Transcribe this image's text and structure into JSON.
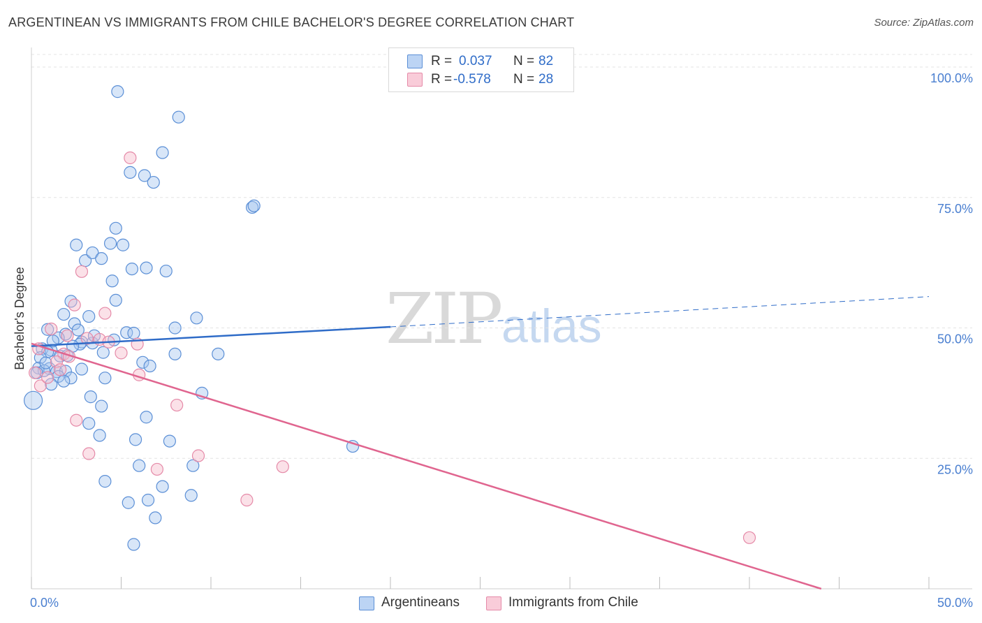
{
  "title": "ARGENTINEAN VS IMMIGRANTS FROM CHILE BACHELOR'S DEGREE CORRELATION CHART",
  "source": "Source: ZipAtlas.com",
  "watermark": {
    "zip": "ZIP",
    "atlas": "atlas"
  },
  "legend_top": {
    "rows": [
      {
        "r_label": "R =",
        "r_value": "0.037",
        "n_label": "N =",
        "n_value": "82"
      },
      {
        "r_label": "R =",
        "r_value": "-0.578",
        "n_label": "N =",
        "n_value": "28"
      }
    ]
  },
  "legend_bottom": {
    "a": "Argentineans",
    "b": "Immigrants from Chile"
  },
  "colors": {
    "blue_fill": "#a9c7f0",
    "blue_stroke": "#5b8fd6",
    "blue_line": "#2f6cc8",
    "pink_fill": "#f7bccd",
    "pink_stroke": "#e58aa8",
    "pink_line": "#e0658f"
  },
  "chart_data": {
    "type": "scatter",
    "title": "ARGENTINEAN VS IMMIGRANTS FROM CHILE BACHELOR'S DEGREE CORRELATION CHART",
    "ylabel": "Bachelor's Degree",
    "xlabel": "",
    "xlim": [
      0,
      50
    ],
    "ylim": [
      0,
      100
    ],
    "x_tick_labels": [
      "0.0%",
      "50.0%"
    ],
    "y_tick_labels": [
      "25.0%",
      "50.0%",
      "75.0%",
      "100.0%"
    ],
    "y_ticks": [
      25,
      50,
      75,
      100
    ],
    "grid": true,
    "legend": "top-center",
    "series": [
      {
        "name": "Argentineans",
        "R": 0.037,
        "N": 82,
        "trend": {
          "x": [
            0,
            20,
            50
          ],
          "y": [
            46.5,
            50.2,
            56.0
          ],
          "solid_until": 20
        },
        "points": [
          [
            4.8,
            95.3
          ],
          [
            8.2,
            90.4
          ],
          [
            7.3,
            83.6
          ],
          [
            5.5,
            79.8
          ],
          [
            6.3,
            79.2
          ],
          [
            6.8,
            77.9
          ],
          [
            12.3,
            73.1
          ],
          [
            12.4,
            73.4
          ],
          [
            4.7,
            69.1
          ],
          [
            5.1,
            65.9
          ],
          [
            2.5,
            65.9
          ],
          [
            4.4,
            66.2
          ],
          [
            3.0,
            62.9
          ],
          [
            3.4,
            64.4
          ],
          [
            3.9,
            63.3
          ],
          [
            5.6,
            61.3
          ],
          [
            6.4,
            61.5
          ],
          [
            7.5,
            60.9
          ],
          [
            4.5,
            59.0
          ],
          [
            4.7,
            55.3
          ],
          [
            2.2,
            55.1
          ],
          [
            1.8,
            52.6
          ],
          [
            3.2,
            52.2
          ],
          [
            9.2,
            51.9
          ],
          [
            0.9,
            49.7
          ],
          [
            1.9,
            48.8
          ],
          [
            2.4,
            50.8
          ],
          [
            5.3,
            49.1
          ],
          [
            5.7,
            49.0
          ],
          [
            8.0,
            50.0
          ],
          [
            2.6,
            49.6
          ],
          [
            1.5,
            48.1
          ],
          [
            2.8,
            47.3
          ],
          [
            3.4,
            47.1
          ],
          [
            4.6,
            47.7
          ],
          [
            2.7,
            46.9
          ],
          [
            0.6,
            46.0
          ],
          [
            1.1,
            45.7
          ],
          [
            0.9,
            45.4
          ],
          [
            1.6,
            44.6
          ],
          [
            4.0,
            45.3
          ],
          [
            8.0,
            45.0
          ],
          [
            10.4,
            45.0
          ],
          [
            0.5,
            44.3
          ],
          [
            0.4,
            42.3
          ],
          [
            1.0,
            42.2
          ],
          [
            0.7,
            41.8
          ],
          [
            1.4,
            41.6
          ],
          [
            1.9,
            41.7
          ],
          [
            2.8,
            42.1
          ],
          [
            0.3,
            41.4
          ],
          [
            1.5,
            40.7
          ],
          [
            2.2,
            40.4
          ],
          [
            1.8,
            39.8
          ],
          [
            4.1,
            40.4
          ],
          [
            6.2,
            43.4
          ],
          [
            6.6,
            42.7
          ],
          [
            1.1,
            39.2
          ],
          [
            9.5,
            37.5
          ],
          [
            3.3,
            36.8
          ],
          [
            3.9,
            35.0
          ],
          [
            0.1,
            36.1
          ],
          [
            6.4,
            32.9
          ],
          [
            3.2,
            31.7
          ],
          [
            3.8,
            29.4
          ],
          [
            5.8,
            28.6
          ],
          [
            7.7,
            28.3
          ],
          [
            17.9,
            27.3
          ],
          [
            6.0,
            23.6
          ],
          [
            9.0,
            23.6
          ],
          [
            4.1,
            20.6
          ],
          [
            7.3,
            19.6
          ],
          [
            8.9,
            17.9
          ],
          [
            5.4,
            16.5
          ],
          [
            6.5,
            17.0
          ],
          [
            6.9,
            13.6
          ],
          [
            5.7,
            8.5
          ],
          [
            2.3,
            46.5
          ],
          [
            1.2,
            47.5
          ],
          [
            2.0,
            44.7
          ],
          [
            3.5,
            48.5
          ],
          [
            0.8,
            43.3
          ]
        ]
      },
      {
        "name": "Immigrants from Chile",
        "R": -0.578,
        "N": 28,
        "trend": {
          "x": [
            0,
            44
          ],
          "y": [
            47.0,
            0
          ]
        },
        "points": [
          [
            5.5,
            82.6
          ],
          [
            2.8,
            60.8
          ],
          [
            2.4,
            54.4
          ],
          [
            4.1,
            52.8
          ],
          [
            1.1,
            49.8
          ],
          [
            2.0,
            48.5
          ],
          [
            3.1,
            48.0
          ],
          [
            3.8,
            47.8
          ],
          [
            4.3,
            47.3
          ],
          [
            5.9,
            46.9
          ],
          [
            0.4,
            46.0
          ],
          [
            1.8,
            45.0
          ],
          [
            2.1,
            44.5
          ],
          [
            1.4,
            43.5
          ],
          [
            5.0,
            45.2
          ],
          [
            0.2,
            41.4
          ],
          [
            0.5,
            38.9
          ],
          [
            6.0,
            41.0
          ],
          [
            8.1,
            35.2
          ],
          [
            2.5,
            32.3
          ],
          [
            3.2,
            25.9
          ],
          [
            9.3,
            25.5
          ],
          [
            7.0,
            22.9
          ],
          [
            14.0,
            23.4
          ],
          [
            12.0,
            17.0
          ],
          [
            40.0,
            9.8
          ],
          [
            1.6,
            42.0
          ],
          [
            0.9,
            40.5
          ]
        ]
      }
    ]
  }
}
